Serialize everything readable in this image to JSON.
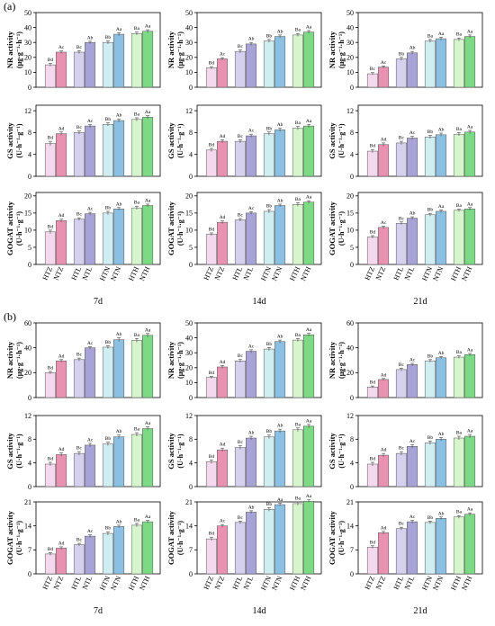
{
  "panel_labels": [
    "(a)",
    "(b)"
  ],
  "categories": [
    "HTZ",
    "NTZ",
    "HTL",
    "NTL",
    "HTN",
    "NTN",
    "HTH",
    "NTH"
  ],
  "colors": [
    "#f3d8ee",
    "#e991b0",
    "#d5d0ee",
    "#a7a3d6",
    "#d0eef2",
    "#8cc0e2",
    "#d6f5cd",
    "#7cda84"
  ],
  "edge_color": "#555555",
  "day_labels": [
    "7d",
    "14d",
    "21d"
  ],
  "metrics": [
    {
      "key": "NR",
      "ylabel1": "NR activity",
      "ylabel2": "(μg·g⁻¹·h⁻¹)"
    },
    {
      "key": "GS",
      "ylabel1": "GS activity",
      "ylabel2": "(U·h⁻¹·g⁻¹)"
    },
    {
      "key": "GOGAT",
      "ylabel1": "GOGAT activity",
      "ylabel2": "(U·h⁻¹·g⁻¹)"
    }
  ],
  "chart_data": [
    {
      "type": "bar",
      "panel": "(a)",
      "metric": "NR",
      "day": "7d",
      "ylim": [
        0,
        50
      ],
      "yticks": [
        0,
        10,
        20,
        30,
        40,
        50
      ],
      "categories": [
        "HTZ",
        "NTZ",
        "HTL",
        "NTL",
        "HTN",
        "NTN",
        "HTH",
        "NTH"
      ],
      "values": [
        15,
        23.5,
        23.5,
        30,
        30,
        35.5,
        36,
        37.5
      ],
      "errors": [
        1,
        0.8,
        1,
        0.8,
        1,
        1,
        1,
        1
      ],
      "labels": [
        "Bd",
        "Ac",
        "Bc",
        "Ab",
        "Bb",
        "Aa",
        "Ba",
        "Aa"
      ]
    },
    {
      "type": "bar",
      "panel": "(a)",
      "metric": "NR",
      "day": "14d",
      "ylim": [
        0,
        50
      ],
      "yticks": [
        0,
        10,
        20,
        30,
        40,
        50
      ],
      "categories": [
        "HTZ",
        "NTZ",
        "HTL",
        "NTL",
        "HTN",
        "NTN",
        "HTH",
        "NTH"
      ],
      "values": [
        13,
        19,
        24,
        29,
        31,
        34,
        35,
        37
      ],
      "errors": [
        0.8,
        0.8,
        1,
        1,
        1,
        1,
        1,
        1
      ],
      "labels": [
        "Bd",
        "Ac",
        "Bc",
        "Ab",
        "Bb",
        "Ab",
        "Ba",
        "Aa"
      ]
    },
    {
      "type": "bar",
      "panel": "(a)",
      "metric": "NR",
      "day": "21d",
      "ylim": [
        0,
        50
      ],
      "yticks": [
        0,
        10,
        20,
        30,
        40,
        50
      ],
      "categories": [
        "HTZ",
        "NTZ",
        "HTL",
        "NTL",
        "HTN",
        "NTN",
        "HTH",
        "NTH"
      ],
      "values": [
        9,
        13.5,
        19,
        23,
        31,
        32.5,
        32,
        34
      ],
      "errors": [
        0.8,
        0.8,
        1,
        1,
        1,
        1,
        1,
        1
      ],
      "labels": [
        "Bc",
        "Ac",
        "Bb",
        "Ab",
        "Ba",
        "Aa",
        "Ba",
        "Aa"
      ]
    },
    {
      "type": "bar",
      "panel": "(a)",
      "metric": "GS",
      "day": "7d",
      "ylim": [
        0,
        13
      ],
      "yticks": [
        0,
        4,
        8,
        12
      ],
      "categories": [
        "HTZ",
        "NTZ",
        "HTL",
        "NTL",
        "HTN",
        "NTN",
        "HTH",
        "NTH"
      ],
      "values": [
        6,
        7.8,
        8,
        9.2,
        9.5,
        10.2,
        10.4,
        10.8
      ],
      "errors": [
        0.4,
        0.3,
        0.3,
        0.3,
        0.3,
        0.3,
        0.3,
        0.3
      ],
      "labels": [
        "Bd",
        "Ad",
        "Bc",
        "Ac",
        "Bb",
        "Ab",
        "Ba",
        "Aa"
      ]
    },
    {
      "type": "bar",
      "panel": "(a)",
      "metric": "GS",
      "day": "14d",
      "ylim": [
        0,
        13
      ],
      "yticks": [
        0,
        4,
        8,
        12
      ],
      "categories": [
        "HTZ",
        "NTZ",
        "HTL",
        "NTL",
        "HTN",
        "NTN",
        "HTH",
        "NTH"
      ],
      "values": [
        4.8,
        6.4,
        6.4,
        7.4,
        7.8,
        8.5,
        8.8,
        9.2
      ],
      "errors": [
        0.3,
        0.3,
        0.3,
        0.3,
        0.3,
        0.3,
        0.3,
        0.3
      ],
      "labels": [
        "Bd",
        "Ad",
        "Bc",
        "Ac",
        "Bb",
        "Ab",
        "Ba",
        "Aa"
      ]
    },
    {
      "type": "bar",
      "panel": "(a)",
      "metric": "GS",
      "day": "21d",
      "ylim": [
        0,
        13
      ],
      "yticks": [
        0,
        4,
        8,
        12
      ],
      "categories": [
        "HTZ",
        "NTZ",
        "HTL",
        "NTL",
        "HTN",
        "NTN",
        "HTH",
        "NTH"
      ],
      "values": [
        4.6,
        5.8,
        6.1,
        7,
        7.2,
        7.6,
        7.7,
        8.1
      ],
      "errors": [
        0.3,
        0.3,
        0.3,
        0.3,
        0.3,
        0.3,
        0.3,
        0.3
      ],
      "labels": [
        "Bd",
        "Ad",
        "Bc",
        "Ac",
        "Bb",
        "Ab",
        "Ba",
        "Aa"
      ]
    },
    {
      "type": "bar",
      "panel": "(a)",
      "metric": "GOGAT",
      "day": "7d",
      "ylim": [
        0,
        21
      ],
      "yticks": [
        0,
        5,
        10,
        15,
        20
      ],
      "categories": [
        "HTZ",
        "NTZ",
        "HTL",
        "NTL",
        "HTN",
        "NTN",
        "HTH",
        "NTH"
      ],
      "values": [
        9.5,
        12.8,
        13.2,
        14.8,
        15,
        16.2,
        16.5,
        17.2
      ],
      "errors": [
        0.5,
        0.4,
        0.4,
        0.4,
        0.5,
        0.4,
        0.5,
        0.4
      ],
      "labels": [
        "Bd",
        "Ad",
        "Bc",
        "Ac",
        "Bb",
        "Ab",
        "Ba",
        "Aa"
      ]
    },
    {
      "type": "bar",
      "panel": "(a)",
      "metric": "GOGAT",
      "day": "14d",
      "ylim": [
        0,
        21
      ],
      "yticks": [
        0,
        5,
        10,
        15,
        20
      ],
      "categories": [
        "HTZ",
        "NTZ",
        "HTL",
        "NTL",
        "HTN",
        "NTN",
        "HTH",
        "NTH"
      ],
      "values": [
        8.8,
        12.3,
        13,
        15,
        15.5,
        17.2,
        17.5,
        18.2
      ],
      "errors": [
        0.4,
        0.4,
        0.4,
        0.4,
        0.5,
        0.4,
        0.5,
        0.4
      ],
      "labels": [
        "Bd",
        "Ad",
        "Bc",
        "Ac",
        "Bb",
        "Ab",
        "Ba",
        "Aa"
      ]
    },
    {
      "type": "bar",
      "panel": "(a)",
      "metric": "GOGAT",
      "day": "21d",
      "ylim": [
        0,
        21
      ],
      "yticks": [
        0,
        5,
        10,
        15,
        20
      ],
      "categories": [
        "HTZ",
        "NTZ",
        "HTL",
        "NTL",
        "HTN",
        "NTN",
        "HTH",
        "NTH"
      ],
      "values": [
        8,
        10.8,
        12,
        13.5,
        14.5,
        15.5,
        15.8,
        16.2
      ],
      "errors": [
        0.4,
        0.4,
        0.4,
        0.4,
        0.4,
        0.4,
        0.4,
        0.4
      ],
      "labels": [
        "Bd",
        "Ac",
        "Bc",
        "Ab",
        "Bb",
        "Aa",
        "Ba",
        "Aa"
      ]
    },
    {
      "type": "bar",
      "panel": "(b)",
      "metric": "NR",
      "day": "7d",
      "ylim": [
        0,
        60
      ],
      "yticks": [
        0,
        20,
        40,
        60
      ],
      "categories": [
        "HTZ",
        "NTZ",
        "HTL",
        "NTL",
        "HTN",
        "NTN",
        "HTH",
        "NTH"
      ],
      "values": [
        20,
        29.5,
        30.5,
        40,
        40.5,
        46.5,
        46,
        50
      ],
      "errors": [
        1,
        1,
        1.2,
        1,
        1.2,
        1.5,
        1.5,
        1.5
      ],
      "labels": [
        "Bd",
        "Ad",
        "Bc",
        "Ac",
        "Bb",
        "Ab",
        "Ba",
        "Aa"
      ]
    },
    {
      "type": "bar",
      "panel": "(b)",
      "metric": "NR",
      "day": "14d",
      "ylim": [
        0,
        50
      ],
      "yticks": [
        0,
        10,
        20,
        30,
        40,
        50
      ],
      "categories": [
        "HTZ",
        "NTZ",
        "HTL",
        "NTL",
        "HTN",
        "NTN",
        "HTH",
        "NTH"
      ],
      "values": [
        13.5,
        20.5,
        24.5,
        31,
        32.5,
        37.5,
        38.5,
        42
      ],
      "errors": [
        0.8,
        1,
        1,
        1,
        1,
        1,
        1,
        1
      ],
      "labels": [
        "Bd",
        "Ad",
        "Bc",
        "Ac",
        "Bb",
        "Ab",
        "Ba",
        "Aa"
      ]
    },
    {
      "type": "bar",
      "panel": "(b)",
      "metric": "NR",
      "day": "21d",
      "ylim": [
        0,
        60
      ],
      "yticks": [
        0,
        20,
        40,
        60
      ],
      "categories": [
        "HTZ",
        "NTZ",
        "HTL",
        "NTL",
        "HTN",
        "NTN",
        "HTH",
        "NTH"
      ],
      "values": [
        8.5,
        14.5,
        22.5,
        26.5,
        29.5,
        32,
        32.5,
        34.5
      ],
      "errors": [
        0.8,
        0.8,
        1,
        1,
        1,
        1,
        1,
        1
      ],
      "labels": [
        "Bd",
        "Ad",
        "Bc",
        "Ac",
        "Bb",
        "Ab",
        "Ba",
        "Aa"
      ]
    },
    {
      "type": "bar",
      "panel": "(b)",
      "metric": "GS",
      "day": "7d",
      "ylim": [
        0,
        12
      ],
      "yticks": [
        0,
        4,
        8,
        12
      ],
      "categories": [
        "HTZ",
        "NTZ",
        "HTL",
        "NTL",
        "HTN",
        "NTN",
        "HTH",
        "NTH"
      ],
      "values": [
        3.8,
        5.4,
        5.6,
        7,
        7.2,
        8.4,
        8.8,
        9.8
      ],
      "errors": [
        0.3,
        0.3,
        0.3,
        0.3,
        0.3,
        0.3,
        0.3,
        0.3
      ],
      "labels": [
        "Bd",
        "Ad",
        "Bc",
        "Ac",
        "Bb",
        "Ab",
        "Ba",
        "Aa"
      ]
    },
    {
      "type": "bar",
      "panel": "(b)",
      "metric": "GS",
      "day": "14d",
      "ylim": [
        0,
        12
      ],
      "yticks": [
        0,
        4,
        8,
        12
      ],
      "categories": [
        "HTZ",
        "NTZ",
        "HTL",
        "NTL",
        "HTN",
        "NTN",
        "HTH",
        "NTH"
      ],
      "values": [
        4.2,
        6.2,
        6.6,
        8.2,
        8.4,
        9.4,
        9.6,
        10.2
      ],
      "errors": [
        0.3,
        0.3,
        0.3,
        0.3,
        0.3,
        0.3,
        0.3,
        0.3
      ],
      "labels": [
        "Bd",
        "Ad",
        "Bc",
        "Ab",
        "Bb",
        "Ab",
        "Ba",
        "Aa"
      ]
    },
    {
      "type": "bar",
      "panel": "(b)",
      "metric": "GS",
      "day": "21d",
      "ylim": [
        0,
        12
      ],
      "yticks": [
        0,
        4,
        8,
        12
      ],
      "categories": [
        "HTZ",
        "NTZ",
        "HTL",
        "NTL",
        "HTN",
        "NTN",
        "HTH",
        "NTH"
      ],
      "values": [
        3.8,
        5.3,
        5.6,
        6.8,
        7.4,
        8,
        8.2,
        8.5
      ],
      "errors": [
        0.3,
        0.3,
        0.3,
        0.3,
        0.3,
        0.3,
        0.3,
        0.3
      ],
      "labels": [
        "Bd",
        "Ad",
        "Bc",
        "Ac",
        "Bb",
        "Ab",
        "Ba",
        "Aa"
      ]
    },
    {
      "type": "bar",
      "panel": "(b)",
      "metric": "GOGAT",
      "day": "7d",
      "ylim": [
        0,
        21
      ],
      "yticks": [
        0,
        7,
        14,
        21
      ],
      "categories": [
        "HTZ",
        "NTZ",
        "HTL",
        "NTL",
        "HTN",
        "NTN",
        "HTH",
        "NTH"
      ],
      "values": [
        5.8,
        7.5,
        8.5,
        11,
        11.8,
        13.8,
        14.2,
        15.2
      ],
      "errors": [
        0.4,
        0.4,
        0.4,
        0.4,
        0.5,
        0.4,
        0.5,
        0.4
      ],
      "labels": [
        "Bd",
        "Ad",
        "Bc",
        "Ac",
        "Bb",
        "Ab",
        "Ba",
        "Aa"
      ]
    },
    {
      "type": "bar",
      "panel": "(b)",
      "metric": "GOGAT",
      "day": "14d",
      "ylim": [
        0,
        21
      ],
      "yticks": [
        0,
        7,
        14,
        21
      ],
      "categories": [
        "HTZ",
        "NTZ",
        "HTL",
        "NTL",
        "HTN",
        "NTN",
        "HTH",
        "NTH"
      ],
      "values": [
        10.2,
        14,
        15,
        18,
        18.8,
        20.2,
        20.5,
        21.2
      ],
      "errors": [
        0.5,
        0.4,
        0.4,
        0.4,
        0.5,
        0.4,
        0.5,
        0.4
      ],
      "labels": [
        "Bd",
        "Ac",
        "Bc",
        "Ab",
        "Bb",
        "Aa",
        "Ba",
        "Aa"
      ]
    },
    {
      "type": "bar",
      "panel": "(b)",
      "metric": "GOGAT",
      "day": "21d",
      "ylim": [
        0,
        21
      ],
      "yticks": [
        0,
        7,
        14,
        21
      ],
      "categories": [
        "HTZ",
        "NTZ",
        "HTL",
        "NTL",
        "HTN",
        "NTN",
        "HTH",
        "NTH"
      ],
      "values": [
        7.8,
        12,
        13.2,
        15.2,
        15,
        16.2,
        16.6,
        17.4
      ],
      "errors": [
        0.4,
        0.4,
        0.4,
        0.4,
        0.4,
        0.4,
        0.4,
        0.4
      ],
      "labels": [
        "Bd",
        "Ad",
        "Bc",
        "Ac",
        "Bb",
        "Ab",
        "Ba",
        "Aa"
      ]
    }
  ]
}
